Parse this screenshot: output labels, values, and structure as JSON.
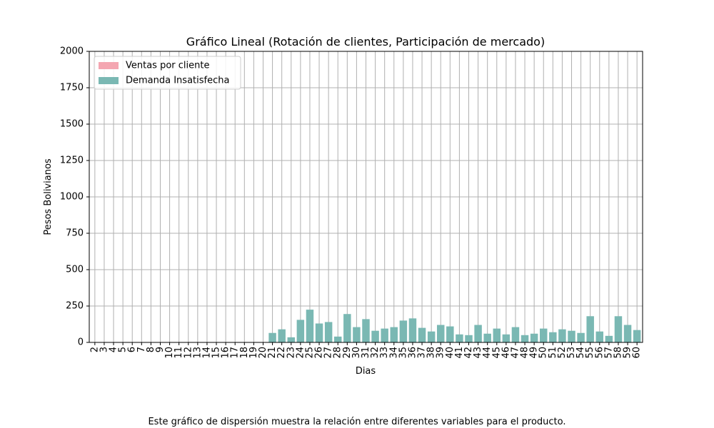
{
  "chart_data": {
    "type": "bar",
    "title": "Gráfico Lineal (Rotación de clientes, Participación de mercado)",
    "xlabel": "Dias",
    "ylabel": "Pesos Bolivianos",
    "ylim": [
      0,
      2000
    ],
    "yticks": [
      "0",
      "250",
      "500",
      "750",
      "1000",
      "1250",
      "1500",
      "1750",
      "2000"
    ],
    "grid": true,
    "legend_position": "top-left",
    "categories": [
      "2",
      "3",
      "4",
      "5",
      "6",
      "7",
      "8",
      "9",
      "10",
      "11",
      "12",
      "13",
      "14",
      "15",
      "16",
      "17",
      "18",
      "19",
      "20",
      "21",
      "22",
      "23",
      "24",
      "25",
      "26",
      "27",
      "28",
      "29",
      "30",
      "31",
      "32",
      "33",
      "34",
      "35",
      "36",
      "37",
      "38",
      "39",
      "40",
      "41",
      "42",
      "43",
      "44",
      "45",
      "46",
      "47",
      "48",
      "49",
      "50",
      "51",
      "52",
      "53",
      "54",
      "55",
      "56",
      "57",
      "58",
      "59",
      "60"
    ],
    "series": [
      {
        "name": "Ventas por cliente",
        "color": "#f4a6b1",
        "values": [
          0,
          0,
          0,
          0,
          0,
          0,
          0,
          0,
          0,
          0,
          0,
          0,
          0,
          0,
          0,
          0,
          0,
          0,
          0,
          0,
          0,
          0,
          0,
          0,
          0,
          0,
          0,
          0,
          0,
          0,
          0,
          0,
          0,
          0,
          0,
          0,
          0,
          0,
          0,
          0,
          0,
          0,
          0,
          0,
          0,
          0,
          0,
          0,
          0,
          0,
          0,
          0,
          0,
          0,
          0,
          0,
          0,
          0,
          0
        ]
      },
      {
        "name": "Demanda Insatisfecha",
        "color": "#7ab8b3",
        "values": [
          0,
          0,
          0,
          0,
          0,
          0,
          0,
          0,
          0,
          0,
          0,
          0,
          0,
          0,
          0,
          0,
          0,
          0,
          0,
          65,
          90,
          35,
          155,
          225,
          130,
          140,
          40,
          195,
          105,
          160,
          80,
          95,
          105,
          150,
          165,
          100,
          75,
          120,
          110,
          55,
          50,
          120,
          60,
          95,
          55,
          105,
          50,
          60,
          95,
          70,
          90,
          80,
          65,
          180,
          75,
          45,
          180,
          120,
          85
        ]
      }
    ]
  },
  "caption": "Este gráfico de dispersión muestra la relación entre diferentes variables para el producto."
}
